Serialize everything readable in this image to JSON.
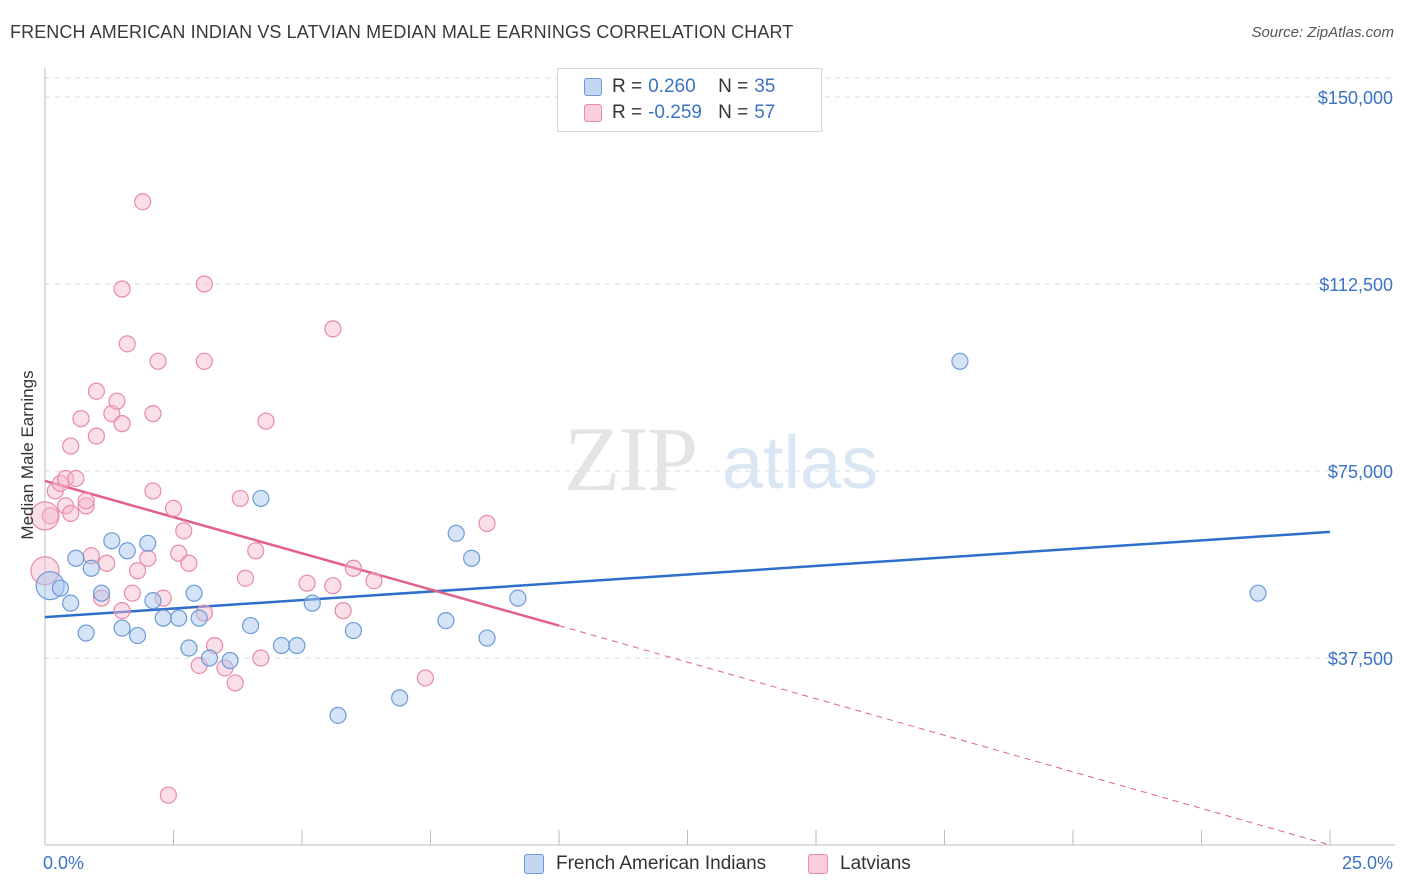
{
  "title": "FRENCH AMERICAN INDIAN VS LATVIAN MEDIAN MALE EARNINGS CORRELATION CHART",
  "source": "Source: ZipAtlas.com",
  "watermark": {
    "zip": "ZIP",
    "atlas": "atlas"
  },
  "legend": {
    "rows": [
      {
        "r_label": "R =",
        "r_value": "0.260",
        "n_label": "N =",
        "n_value": "35"
      },
      {
        "r_label": "R =",
        "r_value": "-0.259",
        "n_label": "N =",
        "n_value": "57"
      }
    ]
  },
  "bottom_legend": [
    "French American Indians",
    "Latvians"
  ],
  "colors": {
    "blue_fill": "#a9c7ee",
    "blue_stroke": "#6d9ad8",
    "blue_line": "#2e6fcc",
    "pink_fill": "#f4b8cb",
    "pink_stroke": "#e98aa8",
    "pink_line": "#e0608a",
    "tick_text": "#3b73c4",
    "grid": "#d9d9d9"
  },
  "chart_data": {
    "type": "scatter",
    "xlabel": "",
    "ylabel": "Median Male Earnings",
    "xlim": [
      0,
      25
    ],
    "ylim": [
      0,
      150000
    ],
    "x_tick_labels": [
      "0.0%",
      "25.0%"
    ],
    "y_ticks": [
      37500,
      75000,
      112500,
      150000
    ],
    "y_tick_labels": [
      "$37,500",
      "$75,000",
      "$112,500",
      "$150,000"
    ],
    "grid": true,
    "legend_position": "top-center",
    "series": [
      {
        "name": "French American Indians",
        "points": [
          [
            0.1,
            52000
          ],
          [
            0.3,
            51500
          ],
          [
            0.5,
            48500
          ],
          [
            0.6,
            57500
          ],
          [
            0.8,
            42500
          ],
          [
            0.9,
            55500
          ],
          [
            1.1,
            50500
          ],
          [
            1.3,
            61000
          ],
          [
            1.5,
            43500
          ],
          [
            1.6,
            59000
          ],
          [
            1.8,
            42000
          ],
          [
            2.0,
            60500
          ],
          [
            2.1,
            49000
          ],
          [
            2.3,
            45500
          ],
          [
            2.6,
            45500
          ],
          [
            2.8,
            39500
          ],
          [
            2.9,
            50500
          ],
          [
            3.0,
            45500
          ],
          [
            3.2,
            37500
          ],
          [
            3.6,
            37000
          ],
          [
            4.0,
            44000
          ],
          [
            4.2,
            69500
          ],
          [
            4.6,
            40000
          ],
          [
            4.9,
            40000
          ],
          [
            5.2,
            48500
          ],
          [
            5.7,
            26000
          ],
          [
            6.0,
            43000
          ],
          [
            6.9,
            29500
          ],
          [
            7.8,
            45000
          ],
          [
            8.0,
            62500
          ],
          [
            8.3,
            57500
          ],
          [
            8.6,
            41500
          ],
          [
            9.2,
            49500
          ],
          [
            17.8,
            97000
          ],
          [
            23.6,
            50500
          ]
        ],
        "trend": {
          "x": [
            0,
            25
          ],
          "y": [
            45700,
            62800
          ]
        }
      },
      {
        "name": "Latvians",
        "points": [
          [
            0.0,
            55000
          ],
          [
            0.1,
            66000
          ],
          [
            0.2,
            71000
          ],
          [
            0.3,
            72500
          ],
          [
            0.4,
            68000
          ],
          [
            0.4,
            73500
          ],
          [
            0.5,
            66500
          ],
          [
            0.5,
            80000
          ],
          [
            0.6,
            73500
          ],
          [
            0.7,
            85500
          ],
          [
            0.8,
            68000
          ],
          [
            0.8,
            69000
          ],
          [
            0.9,
            58000
          ],
          [
            1.0,
            82000
          ],
          [
            1.0,
            91000
          ],
          [
            1.1,
            49500
          ],
          [
            1.2,
            56500
          ],
          [
            1.3,
            86500
          ],
          [
            1.4,
            89000
          ],
          [
            1.5,
            84500
          ],
          [
            1.5,
            47000
          ],
          [
            1.5,
            111500
          ],
          [
            1.6,
            100500
          ],
          [
            1.7,
            50500
          ],
          [
            1.8,
            55000
          ],
          [
            1.9,
            129000
          ],
          [
            2.0,
            57500
          ],
          [
            2.1,
            71000
          ],
          [
            2.1,
            86500
          ],
          [
            2.2,
            97000
          ],
          [
            2.3,
            49500
          ],
          [
            2.4,
            10000
          ],
          [
            2.5,
            67500
          ],
          [
            2.6,
            58500
          ],
          [
            2.7,
            63000
          ],
          [
            2.8,
            56500
          ],
          [
            3.0,
            36000
          ],
          [
            3.1,
            46500
          ],
          [
            3.1,
            97000
          ],
          [
            3.1,
            112500
          ],
          [
            3.3,
            40000
          ],
          [
            3.5,
            35500
          ],
          [
            3.7,
            32500
          ],
          [
            3.8,
            69500
          ],
          [
            3.9,
            53500
          ],
          [
            4.1,
            59000
          ],
          [
            4.2,
            37500
          ],
          [
            4.3,
            85000
          ],
          [
            5.1,
            52500
          ],
          [
            5.6,
            103500
          ],
          [
            5.6,
            52000
          ],
          [
            5.8,
            47000
          ],
          [
            6.0,
            55500
          ],
          [
            6.4,
            53000
          ],
          [
            7.4,
            33500
          ],
          [
            8.6,
            64500
          ],
          [
            0.0,
            66000
          ]
        ],
        "trend_solid": {
          "x": [
            0,
            10
          ],
          "y": [
            73000,
            44000
          ]
        },
        "trend_dashed": {
          "x": [
            10,
            25
          ],
          "y": [
            44000,
            0
          ]
        }
      }
    ]
  }
}
